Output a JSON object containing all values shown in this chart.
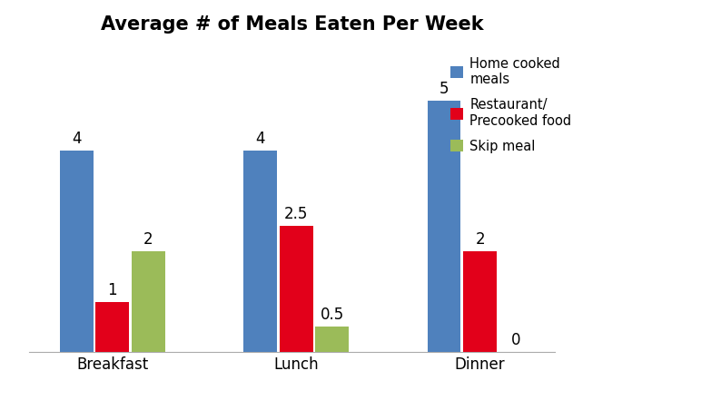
{
  "title": "Average # of Meals Eaten Per Week",
  "categories": [
    "Breakfast",
    "Lunch",
    "Dinner"
  ],
  "series": [
    {
      "label": "Home cooked\nmeals",
      "values": [
        4,
        4,
        5
      ],
      "color": "#4F81BD"
    },
    {
      "label": "Restaurant/\nPrecooked food",
      "values": [
        1,
        2.5,
        2
      ],
      "color": "#E2001A"
    },
    {
      "label": "Skip meal",
      "values": [
        2,
        0.5,
        0
      ],
      "color": "#9BBB59"
    }
  ],
  "ylim": [
    0,
    6.2
  ],
  "bar_width": 0.2,
  "title_fontsize": 15,
  "tick_fontsize": 12,
  "annotation_fontsize": 12,
  "legend_fontsize": 10.5,
  "background_color": "#FFFFFF"
}
